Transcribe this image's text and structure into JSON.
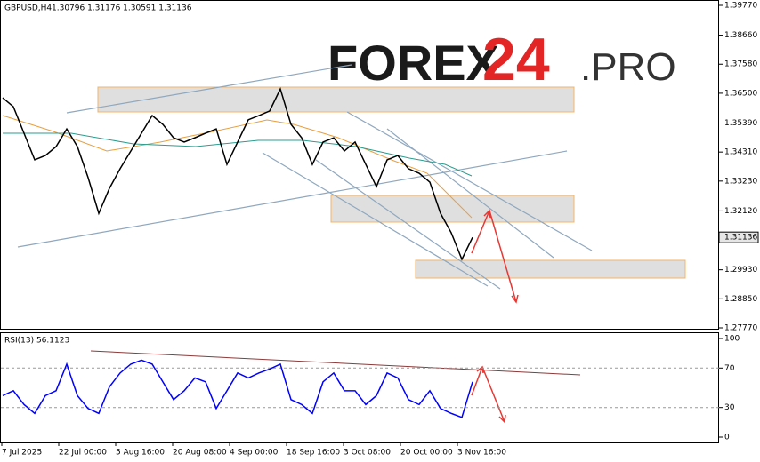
{
  "watermark": {
    "left": "FOREX",
    "mid": "24",
    "right": ".PRO"
  },
  "chart_data": [
    {
      "type": "line",
      "title": "GBPUSD,H4",
      "subtitle": "1.30796 1.31176 1.30591 1.31136",
      "series": [
        {
          "name": "GBPUSD",
          "color": "#000000",
          "values": [
            1.3633,
            1.36,
            1.3501,
            1.3402,
            1.3418,
            1.3451,
            1.3517,
            1.3451,
            1.3336,
            1.3203,
            1.3296,
            1.3369,
            1.3435,
            1.3501,
            1.3567,
            1.3534,
            1.3484,
            1.3468,
            1.3484,
            1.3501,
            1.3517,
            1.3385,
            1.3468,
            1.3551,
            1.3567,
            1.3584,
            1.3666,
            1.3534,
            1.3484,
            1.3385,
            1.3468,
            1.3484,
            1.3435,
            1.3468,
            1.3385,
            1.3302,
            1.3402,
            1.3418,
            1.3369,
            1.3352,
            1.3319,
            1.3203,
            1.3131,
            1.3032,
            1.31136
          ]
        }
      ],
      "last_price": 1.31136,
      "ylim": [
        1.2777,
        1.3977
      ],
      "yticks": [
        {
          "value": 1.3977,
          "label": "1.39770"
        },
        {
          "value": 1.3866,
          "label": "1.38660"
        },
        {
          "value": 1.3758,
          "label": "1.37580"
        },
        {
          "value": 1.365,
          "label": "1.36500"
        },
        {
          "value": 1.3539,
          "label": "1.35390"
        },
        {
          "value": 1.3431,
          "label": "1.34310"
        },
        {
          "value": 1.3323,
          "label": "1.33230"
        },
        {
          "value": 1.3212,
          "label": "1.32120"
        },
        {
          "value": 1.2993,
          "label": "1.29930"
        },
        {
          "value": 1.2885,
          "label": "1.28850"
        },
        {
          "value": 1.2777,
          "label": "1.27770"
        }
      ]
    },
    {
      "type": "line",
      "title": "RSI(13) 56.1123",
      "series": [
        {
          "name": "RSI(13)",
          "color": "#0000ff",
          "values": [
            42,
            47,
            33,
            24,
            42,
            47,
            74,
            42,
            29,
            24,
            51,
            65,
            74,
            78,
            74,
            56,
            38,
            47,
            60,
            56,
            29,
            47,
            65,
            60,
            65,
            69,
            74,
            38,
            33,
            24,
            56,
            65,
            47,
            47,
            33,
            42,
            65,
            60,
            38,
            33,
            47,
            29,
            24,
            20,
            56
          ]
        }
      ],
      "ylim": [
        0,
        100
      ],
      "yticks": [
        0,
        30,
        70,
        100
      ],
      "levels": [
        30,
        70
      ],
      "x_labels": [
        "7 Jul 2025",
        "22 Jul 00:00",
        "5 Aug 16:00",
        "20 Aug 08:00",
        "4 Sep 00:00",
        "18 Sep 16:00",
        "3 Oct 08:00",
        "20 Oct 00:00",
        "3 Nov 16:00"
      ]
    }
  ]
}
